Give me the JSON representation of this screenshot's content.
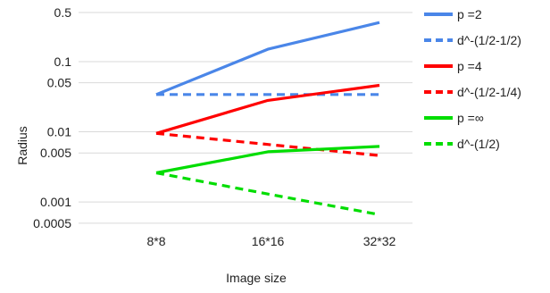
{
  "chart_data": {
    "type": "line",
    "title": "",
    "xlabel": "Image size",
    "ylabel": "Radius",
    "yscale": "log",
    "ylim": [
      0.00035,
      0.5
    ],
    "grid": true,
    "legend_position": "right",
    "categories": [
      "8*8",
      "16*16",
      "32*32"
    ],
    "y_ticks": [
      0.5,
      0.1,
      0.05,
      0.01,
      0.005,
      0.001,
      0.0005
    ],
    "y_tick_labels": [
      "0.5",
      "0.1",
      "0.05",
      "0.01",
      "0.005",
      "0.001",
      "0.0005"
    ],
    "series": [
      {
        "name": "p =2",
        "values": [
          0.034,
          0.15,
          0.36
        ],
        "color": "#4a86e8",
        "dash": "solid"
      },
      {
        "name": "d^-(1/2-1/2)",
        "values": [
          0.034,
          0.034,
          0.034
        ],
        "color": "#4a86e8",
        "dash": "dashed"
      },
      {
        "name": "p =4",
        "values": [
          0.0095,
          0.028,
          0.046
        ],
        "color": "#ff0000",
        "dash": "solid"
      },
      {
        "name": "d^-(1/2-1/4)",
        "values": [
          0.0095,
          0.0066,
          0.0046
        ],
        "color": "#ff0000",
        "dash": "dashed"
      },
      {
        "name": "p =∞",
        "values": [
          0.0026,
          0.0052,
          0.0062
        ],
        "color": "#00dd00",
        "dash": "solid"
      },
      {
        "name": "d^-(1/2)",
        "values": [
          0.0026,
          0.0013,
          0.00066
        ],
        "color": "#00dd00",
        "dash": "dashed"
      }
    ]
  }
}
